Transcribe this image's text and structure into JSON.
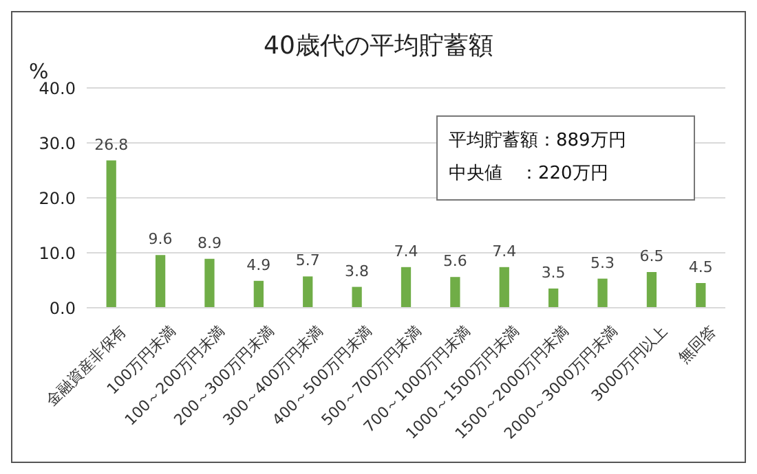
{
  "chart_data": {
    "type": "bar",
    "title": "40歳代の平均貯蓄額",
    "ylabel": "%",
    "categories": [
      "金融資産非保有",
      "100万円未満",
      "100～200万円未満",
      "200～300万円未満",
      "300～400万円未満",
      "400～500万円未満",
      "500～700万円未満",
      "700～1000万円未満",
      "1000～1500万円未満",
      "1500～2000万円未満",
      "2000～3000万円未満",
      "3000万円以上",
      "無回答"
    ],
    "values": [
      26.8,
      9.6,
      8.9,
      4.9,
      5.7,
      3.8,
      7.4,
      5.6,
      7.4,
      3.5,
      5.3,
      6.5,
      4.5
    ],
    "color": "#70ad47",
    "ylim": [
      0,
      40
    ],
    "yticks": [
      {
        "value": 0,
        "label": "0.0"
      },
      {
        "value": 10,
        "label": "10.0"
      },
      {
        "value": 20,
        "label": "20.0"
      },
      {
        "value": 30,
        "label": "30.0"
      },
      {
        "value": 40,
        "label": "40.0"
      }
    ],
    "grid": "y",
    "data_labels": true,
    "annotations": [
      "平均貯蓄額：889万円",
      "中央値　：220万円"
    ]
  }
}
